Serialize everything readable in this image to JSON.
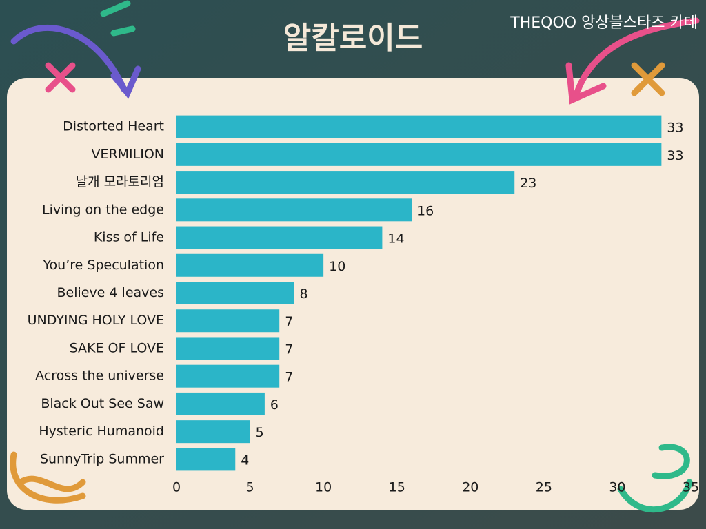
{
  "chart_data": {
    "type": "bar",
    "orientation": "horizontal",
    "title": "알칼로이드",
    "subtitle": "THEQOO 앙상블스타즈 카테",
    "categories": [
      "Distorted Heart",
      "VERMILION",
      "날개 모라토리엄",
      "Living on the edge",
      "Kiss of Life",
      "You’re Speculation",
      "Believe 4 leaves",
      "UNDYING HOLY LOVE",
      "SAKE OF LOVE",
      "Across the universe",
      "Black Out See Saw",
      "Hysteric Humanoid",
      "SunnyTrip Summer"
    ],
    "values": [
      33,
      33,
      23,
      16,
      14,
      10,
      8,
      7,
      7,
      7,
      6,
      5,
      4
    ],
    "color": "#2bb5c8",
    "xlim": [
      0,
      35
    ],
    "xticks": [
      0,
      5,
      10,
      15,
      20,
      25,
      30,
      35
    ],
    "grid": false
  }
}
